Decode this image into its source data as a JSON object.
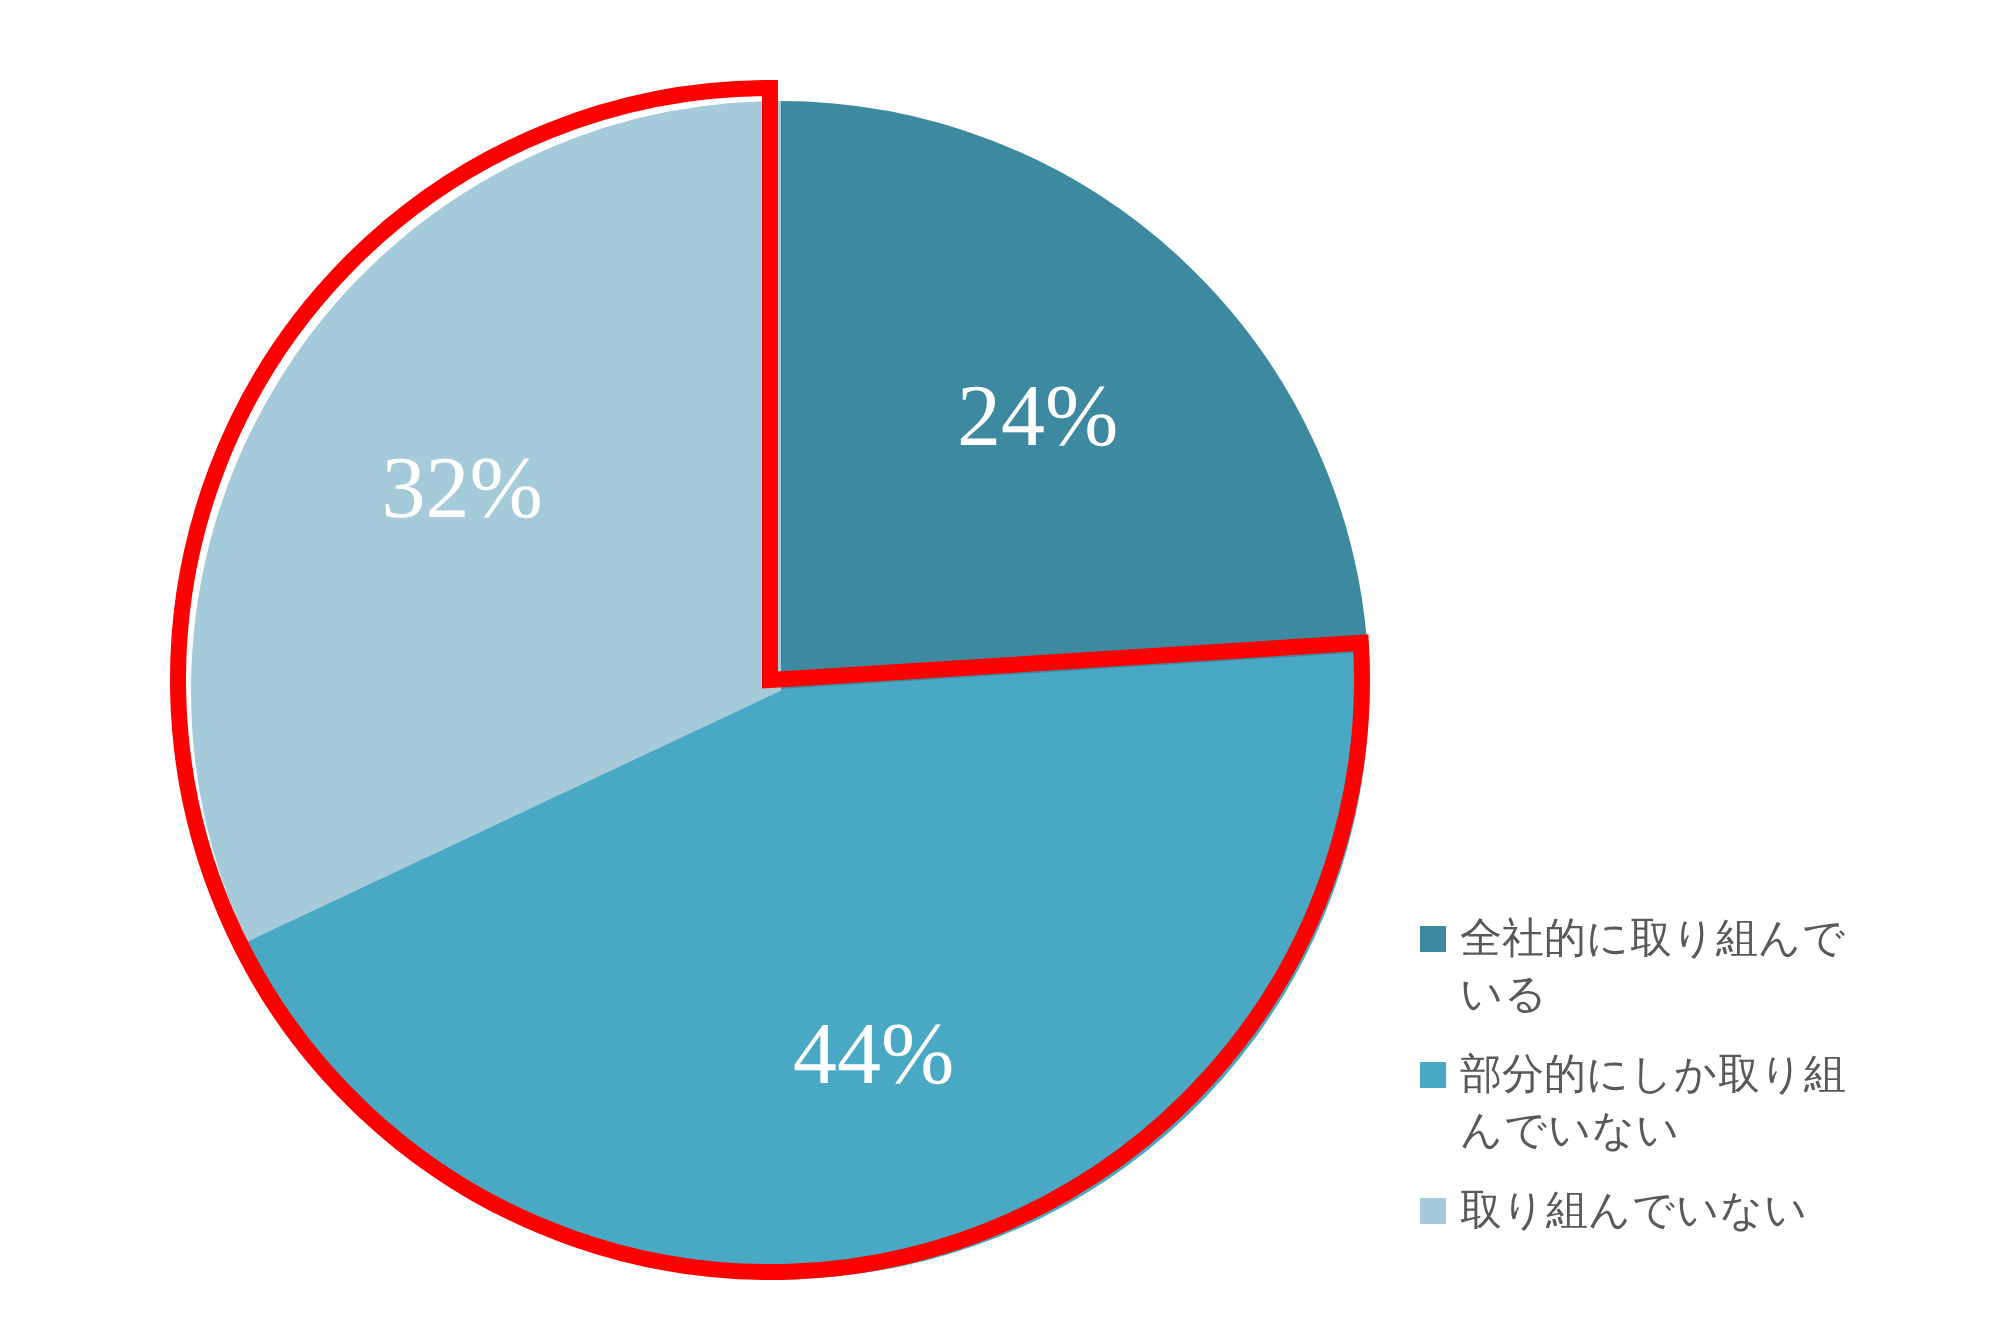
{
  "chart_data": {
    "type": "pie",
    "categories": [
      "全社的に取り組んでいる",
      "部分的にしか取り組んでいない",
      "取り組んでいない"
    ],
    "values": [
      24,
      44,
      32
    ],
    "colors": [
      "#3d8aa0",
      "#49a9c5",
      "#a5cbdb"
    ],
    "value_labels": [
      "24%",
      "44%",
      "32%"
    ],
    "legend": "bottom right"
  }
}
